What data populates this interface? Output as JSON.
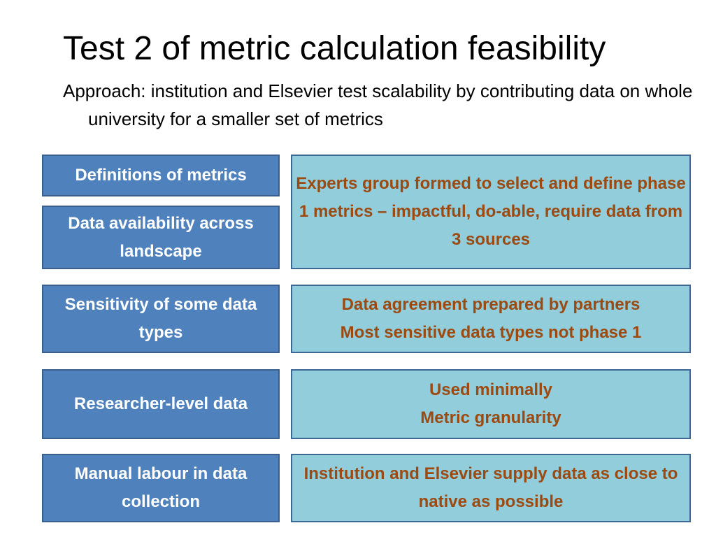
{
  "slide": {
    "title": "Test 2 of metric calculation feasibility",
    "subtitle": "Approach: institution and Elsevier test scalability by contributing data on whole university for a smaller set of metrics"
  },
  "challenges": [
    "Definitions of metrics",
    "Data availability across landscape",
    "Sensitivity of some data types",
    "Researcher-level data",
    "Manual labour in data collection"
  ],
  "responses": [
    "Experts group formed to select and define phase 1 metrics – impactful, do-able, require data from 3 sources",
    "Data agreement prepared by partners\nMost sensitive data types not phase 1",
    "Used minimally\nMetric granularity",
    "Institution and Elsevier supply data as close to native as possible"
  ],
  "colors": {
    "challenge_fill": "#4f81bd",
    "challenge_text": "#ffffff",
    "response_fill": "#92cddc",
    "response_text": "#9b4a12"
  }
}
